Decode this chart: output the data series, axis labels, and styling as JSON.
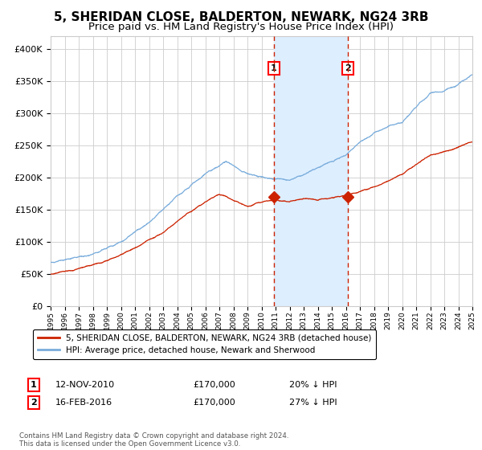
{
  "title": "5, SHERIDAN CLOSE, BALDERTON, NEWARK, NG24 3RB",
  "subtitle": "Price paid vs. HM Land Registry's House Price Index (HPI)",
  "title_fontsize": 11,
  "subtitle_fontsize": 9.5,
  "ytick_values": [
    0,
    50000,
    100000,
    150000,
    200000,
    250000,
    300000,
    350000,
    400000
  ],
  "ylim": [
    0,
    420000
  ],
  "xlim": [
    1995,
    2025
  ],
  "purchase_1_date": 2010.87,
  "purchase_1_price": 170000,
  "purchase_1_label": "1",
  "purchase_2_date": 2016.12,
  "purchase_2_price": 170000,
  "purchase_2_label": "2",
  "hpi_color": "#7aaddc",
  "price_color": "#cc2200",
  "shade_color": "#ddeeff",
  "dashed_color": "#cc2200",
  "grid_color": "#cccccc",
  "bg_color": "#ffffff",
  "legend_label_1": "5, SHERIDAN CLOSE, BALDERTON, NEWARK, NG24 3RB (detached house)",
  "legend_label_2": "HPI: Average price, detached house, Newark and Sherwood",
  "annotation_1_date": "12-NOV-2010",
  "annotation_1_price": "£170,000",
  "annotation_1_hpi": "20% ↓ HPI",
  "annotation_2_date": "16-FEB-2016",
  "annotation_2_price": "£170,000",
  "annotation_2_hpi": "27% ↓ HPI",
  "footer": "Contains HM Land Registry data © Crown copyright and database right 2024.\nThis data is licensed under the Open Government Licence v3.0."
}
